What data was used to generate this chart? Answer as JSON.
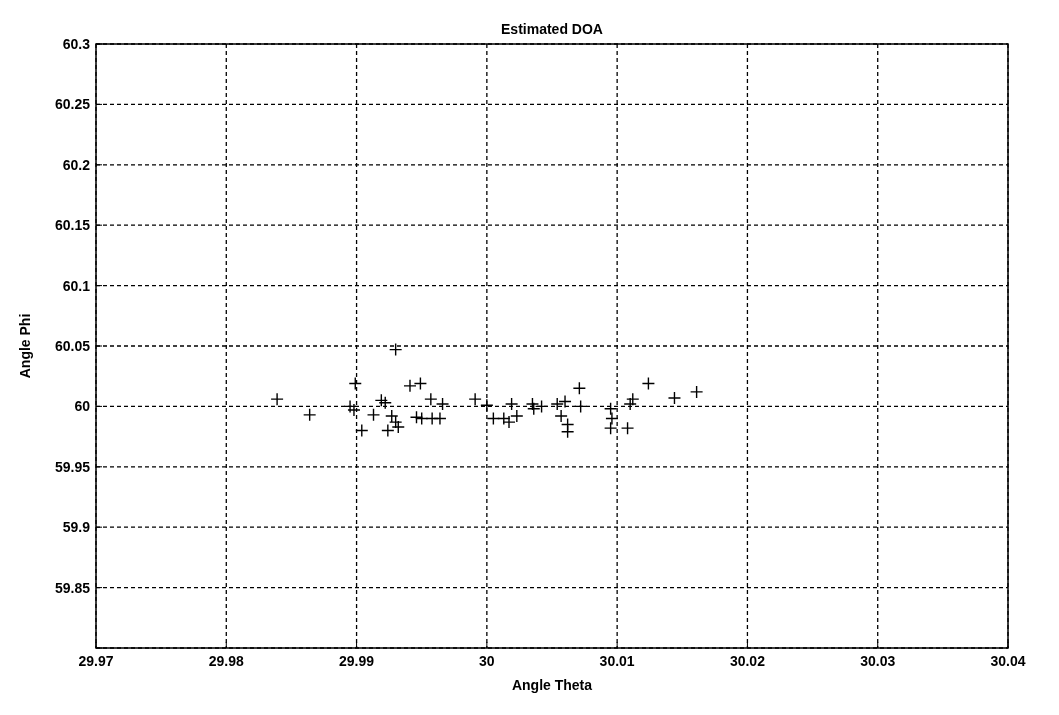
{
  "chart_data": {
    "type": "scatter",
    "title": "Estimated DOA",
    "xlabel": "Angle Theta",
    "ylabel": "Angle Phi",
    "xlim": [
      29.97,
      30.04
    ],
    "xticks": [
      29.97,
      29.98,
      29.99,
      30,
      30.01,
      30.02,
      30.03,
      30.04
    ],
    "ylim": [
      59.8,
      60.3
    ],
    "yticks": [
      {
        "value": 59.8,
        "label": null
      },
      59.85,
      59.9,
      59.95,
      60,
      60.05,
      60.1,
      60.15,
      60.2,
      60.25,
      60.3
    ],
    "grid": true,
    "marker": "cross",
    "line_style": "dashed",
    "series": [
      {
        "color": "#000000",
        "x": [
          29.9839,
          29.9864,
          29.9895,
          29.9898,
          29.9899,
          29.9904,
          29.9913,
          29.9919,
          29.9922,
          29.9924,
          29.9927,
          29.993,
          29.9932,
          29.993,
          29.9941,
          29.9949,
          29.9946,
          29.995,
          29.9957,
          29.9958,
          29.9964,
          29.9966,
          29.9991,
          30.0,
          30.0005,
          30.0013,
          30.0017,
          30.0019,
          30.0023,
          30.0035,
          30.0036,
          30.0042,
          30.0054,
          30.0057,
          30.006,
          30.0062,
          30.0062,
          30.0071,
          30.0072,
          30.0095,
          30.0096,
          30.0095,
          30.0108,
          30.011,
          30.0112,
          30.0124,
          30.0144,
          30.0161
        ],
        "values": [
          60.006,
          59.993,
          60.0,
          59.997,
          60.019,
          59.98,
          59.993,
          60.005,
          60.003,
          59.98,
          59.992,
          59.987,
          59.983,
          60.047,
          60.017,
          60.019,
          59.991,
          59.99,
          60.006,
          59.99,
          59.99,
          60.002,
          60.006,
          60.001,
          59.99,
          59.99,
          59.987,
          60.002,
          59.992,
          60.002,
          59.998,
          60.0,
          60.002,
          59.992,
          60.004,
          59.985,
          59.979,
          60.015,
          60.0,
          59.998,
          59.99,
          59.982,
          59.982,
          60.002,
          60.006,
          60.019,
          60.007,
          60.012
        ]
      }
    ]
  }
}
